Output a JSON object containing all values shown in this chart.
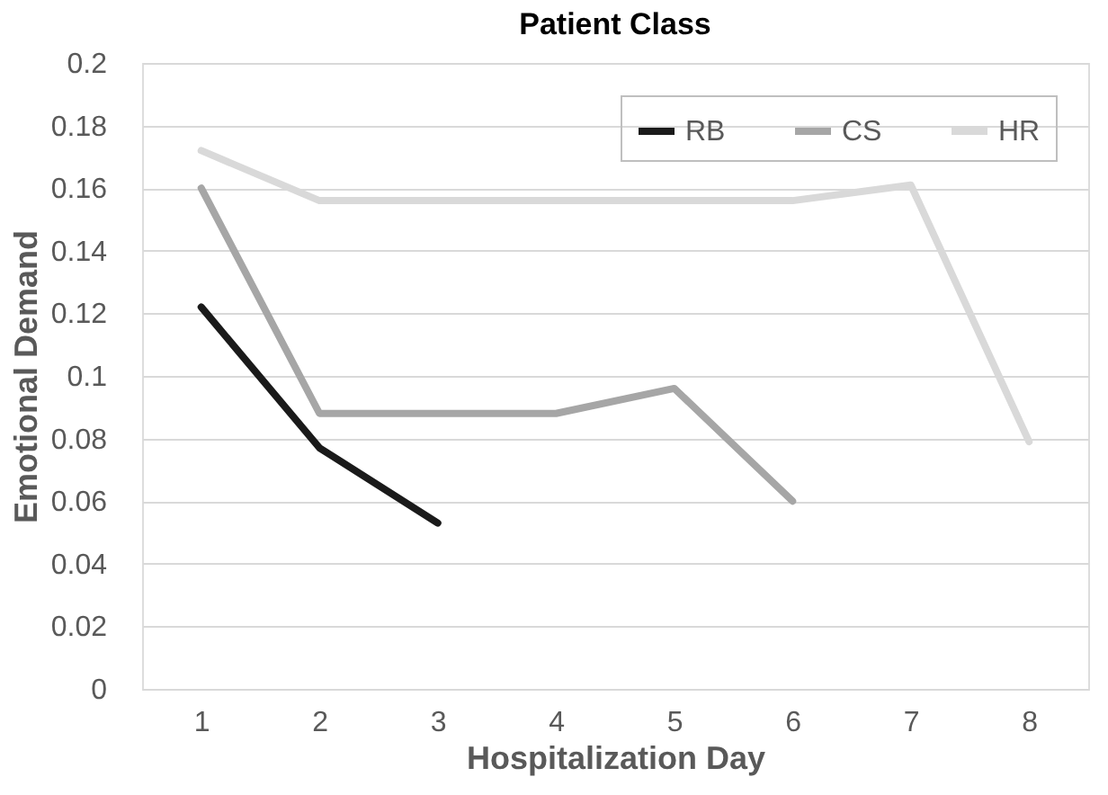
{
  "chart_data": {
    "type": "line",
    "title": "Patient Class",
    "xlabel": "Hospitalization Day",
    "ylabel": "Emotional Demand",
    "categories": [
      "1",
      "2",
      "3",
      "4",
      "5",
      "6",
      "7",
      "8"
    ],
    "series": [
      {
        "name": "RB",
        "color": "#1a1a1a",
        "values": [
          0.122,
          0.077,
          0.053,
          null,
          null,
          null,
          null,
          null
        ]
      },
      {
        "name": "CS",
        "color": "#a6a6a6",
        "values": [
          0.16,
          0.088,
          0.088,
          0.088,
          0.096,
          0.06,
          null,
          null
        ]
      },
      {
        "name": "HR",
        "color": "#d9d9d9",
        "values": [
          0.172,
          0.156,
          0.156,
          0.156,
          0.156,
          0.156,
          0.161,
          0.079
        ]
      }
    ],
    "ylim": [
      0,
      0.2
    ],
    "yticks": [
      0,
      0.02,
      0.04,
      0.06,
      0.08,
      0.1,
      0.12,
      0.14,
      0.16,
      0.18,
      0.2
    ],
    "grid": "y",
    "legend": "top right",
    "marker": "none",
    "line_style": "solid"
  }
}
